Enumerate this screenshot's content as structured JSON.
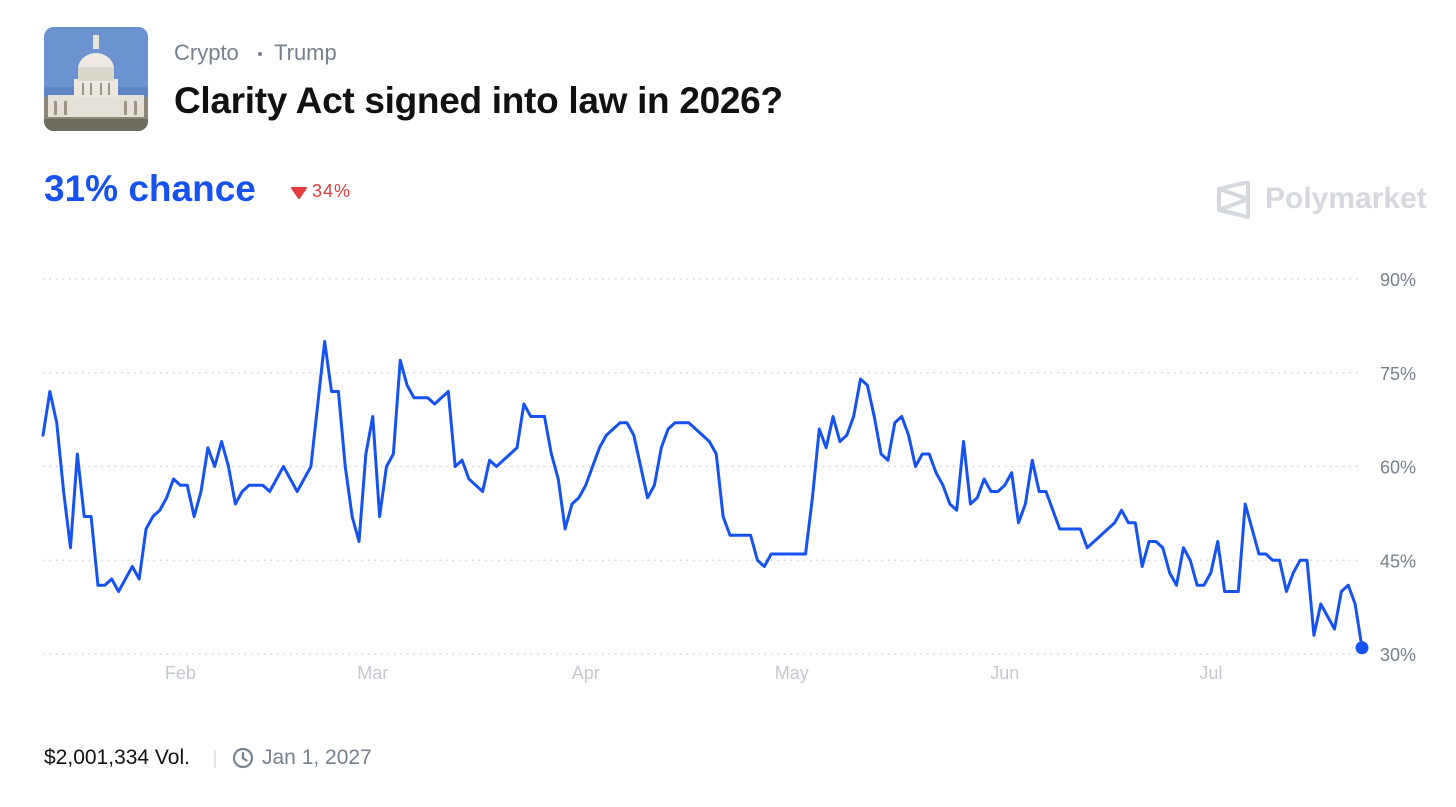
{
  "header": {
    "tags": [
      "Crypto",
      "Trump"
    ],
    "title": "Clarity Act signed into law in 2026?"
  },
  "chance": "31% chance",
  "change": "34%",
  "brand": "Polymarket",
  "chart_data": {
    "type": "line",
    "series": [
      {
        "color": "#1652f0",
        "values": [
          65,
          72,
          67,
          56,
          47,
          62,
          52,
          52,
          41,
          41,
          42,
          40,
          42,
          44,
          42,
          50,
          52,
          53,
          55,
          58,
          57,
          57,
          52,
          56,
          63,
          60,
          64,
          60,
          54,
          56,
          57,
          57,
          57,
          56,
          58,
          60,
          58,
          56,
          58,
          60,
          70,
          80,
          72,
          72,
          60,
          52,
          48,
          62,
          68,
          52,
          60,
          62,
          77,
          73,
          71,
          71,
          71,
          70,
          71,
          72,
          60,
          61,
          58,
          57,
          56,
          61,
          60,
          61,
          62,
          63,
          70,
          68,
          68,
          68,
          62,
          58,
          50,
          54,
          55,
          57,
          60,
          63,
          65,
          66,
          67,
          67,
          65,
          60,
          55,
          57,
          63,
          66,
          67,
          67,
          67,
          66,
          65,
          64,
          62,
          52,
          49,
          49,
          49,
          49,
          45,
          44,
          46,
          46,
          46,
          46,
          46,
          46,
          55,
          66,
          63,
          68,
          64,
          65,
          68,
          74,
          73,
          68,
          62,
          61,
          67,
          68,
          65,
          60,
          62,
          62,
          59,
          57,
          54,
          53,
          64,
          54,
          55,
          58,
          56,
          56,
          57,
          59,
          51,
          54,
          61,
          56,
          56,
          53,
          50,
          50,
          50,
          50,
          47,
          48,
          49,
          50,
          51,
          53,
          51,
          51,
          44,
          48,
          48,
          47,
          43,
          41,
          47,
          45,
          41,
          41,
          43,
          48,
          40,
          40,
          40,
          54,
          50,
          46,
          46,
          45,
          45,
          40,
          43,
          45,
          45,
          33,
          38,
          36,
          34,
          40,
          41,
          38,
          31
        ]
      }
    ],
    "xlim": [
      0,
      192
    ],
    "xticks": [
      {
        "value": 20,
        "label": "Feb"
      },
      {
        "value": 48,
        "label": "Mar"
      },
      {
        "value": 79,
        "label": "Apr"
      },
      {
        "value": 109,
        "label": "May"
      },
      {
        "value": 140,
        "label": "Jun"
      },
      {
        "value": 170,
        "label": "Jul"
      }
    ],
    "ylim": [
      30,
      90
    ],
    "yticks": [
      {
        "value": 30,
        "label": "30%"
      },
      {
        "value": 45,
        "label": "45%"
      },
      {
        "value": 60,
        "label": "60%"
      },
      {
        "value": 75,
        "label": "75%"
      },
      {
        "value": 90,
        "label": "90%"
      }
    ],
    "grid": true
  },
  "footer": {
    "volume": "$2,001,334 Vol.",
    "end_date": "Jan 1, 2027"
  }
}
